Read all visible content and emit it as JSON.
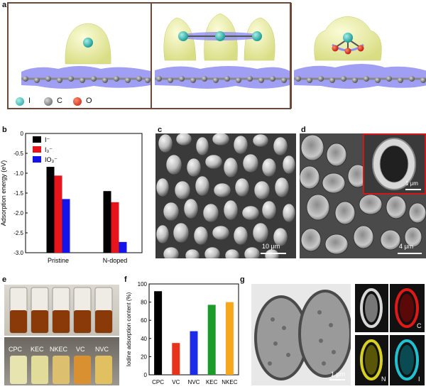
{
  "panels": {
    "a": "a",
    "b": "b",
    "c": "c",
    "d": "d",
    "e": "e",
    "f": "f",
    "g": "g"
  },
  "panel_a": {
    "legend": [
      {
        "label": "I",
        "color": "#2fb5b0"
      },
      {
        "label": "C",
        "color": "#7a7a7a"
      },
      {
        "label": "O",
        "color": "#d8201c"
      }
    ]
  },
  "panel_c": {
    "scale": "10 μm"
  },
  "panel_d": {
    "scale": "4 μm",
    "inset_scale": "1 μm"
  },
  "panel_e": {
    "tube_labels": [
      "CPC",
      "KEC",
      "NKEC",
      "VC",
      "NVC"
    ]
  },
  "panel_g": {
    "scale": "1 μm",
    "map_labels": [
      "",
      "C",
      "N",
      "I"
    ],
    "map_colors": [
      "#d8d8d8",
      "#e01818",
      "#d8d020",
      "#20c0d0"
    ]
  },
  "chart_data": [
    {
      "type": "bar",
      "panel": "b",
      "categories": [
        "Pristine",
        "N-doped"
      ],
      "series": [
        {
          "name": "I⁻",
          "color": "#000000",
          "values": [
            -0.84,
            -1.45
          ]
        },
        {
          "name": "I₃⁻",
          "color": "#e8141c",
          "values": [
            -1.06,
            -1.73
          ]
        },
        {
          "name": "IO₃⁻",
          "color": "#1414e8",
          "values": [
            -1.65,
            -2.73
          ]
        }
      ],
      "ylabel": "Adsorption energy (eV)",
      "ylim": [
        -3.0,
        0
      ],
      "yticks": [
        "-3.0",
        "-2.5",
        "-2.0",
        "-1.5",
        "-1.0",
        "-0.5",
        "0"
      ],
      "legend_position": "top-left"
    },
    {
      "type": "bar",
      "panel": "f",
      "categories": [
        "CPC",
        "VC",
        "NVC",
        "KEC",
        "NKEC"
      ],
      "values": [
        92,
        35,
        48,
        77,
        80
      ],
      "colors": [
        "#000000",
        "#e8321c",
        "#1c2ce8",
        "#1c9a2a",
        "#f5a81c"
      ],
      "ylabel": "Iodine adsorption content (%)",
      "ylim": [
        0,
        100
      ],
      "yticks": [
        "0",
        "20",
        "40",
        "60",
        "80",
        "100"
      ]
    }
  ]
}
